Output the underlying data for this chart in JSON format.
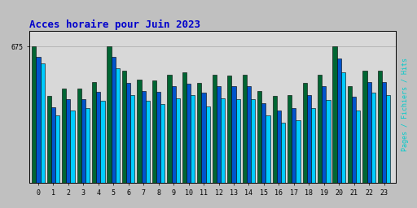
{
  "title": "Acces horaire pour Juin 2023",
  "title_color": "#0000cc",
  "title_fontsize": 9,
  "ylabel_right": "Pages / Fichiers / Hits",
  "ylabel_right_color": "#00cccc",
  "background_color": "#c0c0c0",
  "plot_bg_color": "#d8d8d8",
  "hours": [
    0,
    1,
    2,
    3,
    4,
    5,
    6,
    7,
    8,
    9,
    10,
    11,
    12,
    13,
    14,
    15,
    16,
    17,
    18,
    19,
    20,
    21,
    22,
    23
  ],
  "pages": [
    675,
    430,
    465,
    465,
    500,
    675,
    555,
    510,
    505,
    535,
    545,
    495,
    535,
    530,
    535,
    455,
    430,
    435,
    495,
    535,
    675,
    480,
    555,
    555
  ],
  "fichiers": [
    625,
    375,
    415,
    415,
    450,
    625,
    495,
    455,
    450,
    480,
    490,
    445,
    480,
    480,
    480,
    395,
    360,
    370,
    435,
    480,
    615,
    425,
    500,
    500
  ],
  "hits": [
    590,
    335,
    360,
    370,
    405,
    565,
    435,
    405,
    390,
    420,
    435,
    378,
    420,
    415,
    415,
    335,
    300,
    310,
    370,
    410,
    545,
    360,
    445,
    435
  ],
  "color_pages": "#006633",
  "color_fichiers": "#0055cc",
  "color_hits": "#00ccff",
  "bar_width": 0.28,
  "ylim": [
    0,
    750
  ],
  "ytick_label": "675",
  "ytick_val": 675,
  "border_color": "#000000",
  "font_family": "monospace"
}
